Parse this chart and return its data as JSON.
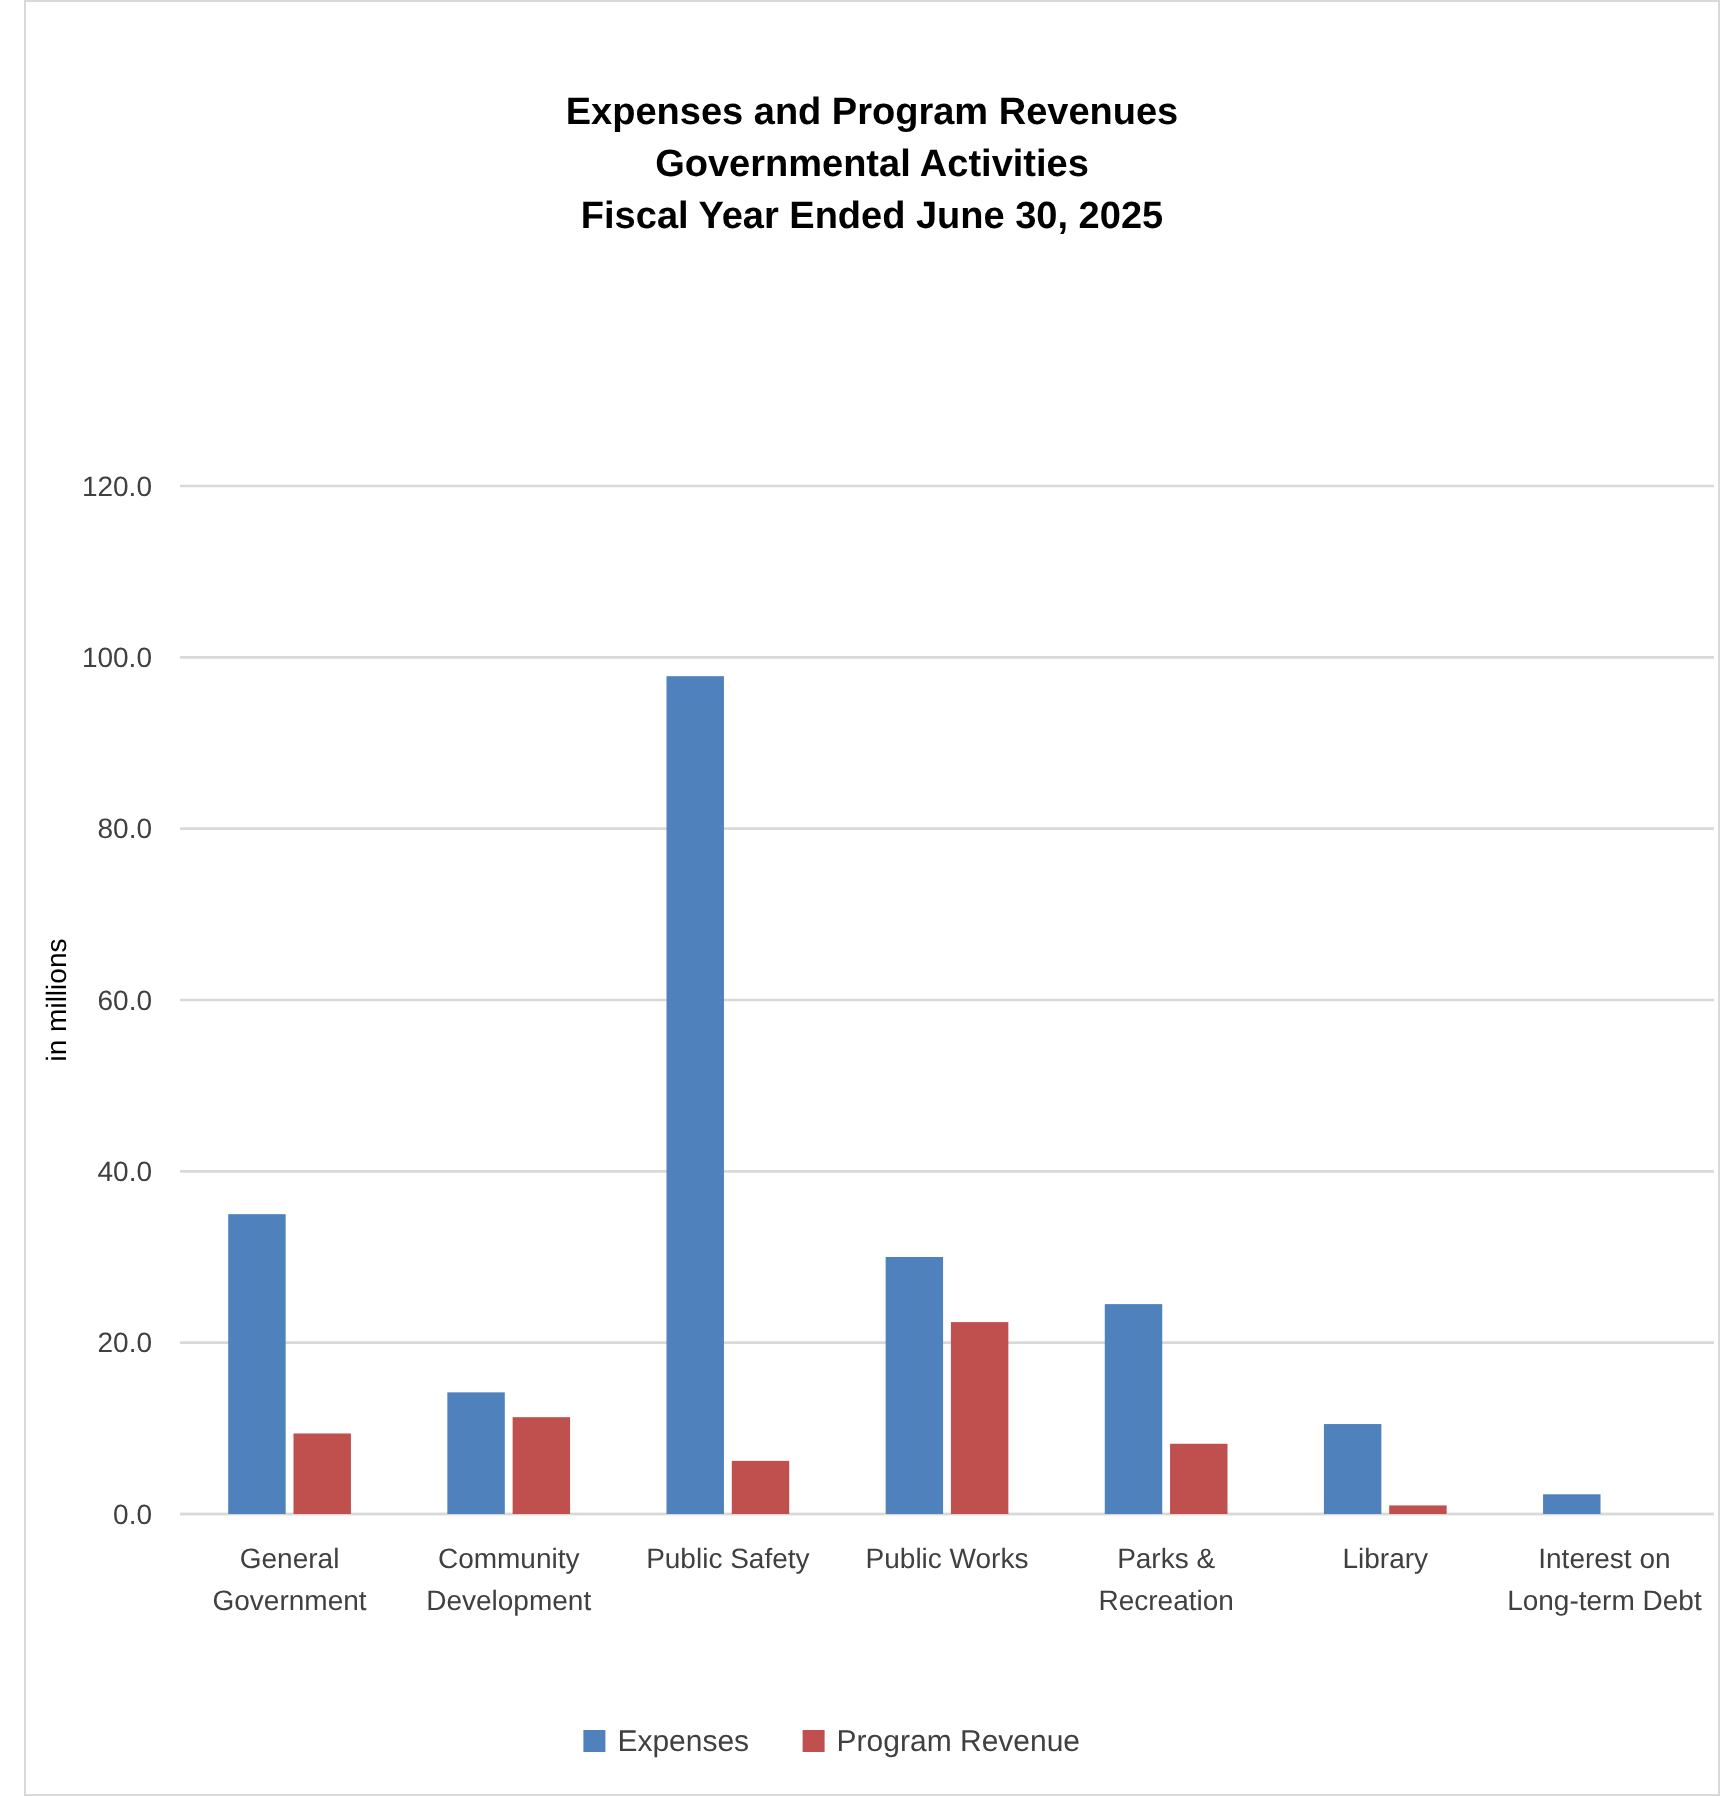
{
  "chart_data": {
    "type": "bar",
    "title": "Expenses and Program Revenues\nGovernmental Activities\nFiscal Year Ended June 30, 2025",
    "ylabel": "in millions",
    "categories": [
      "General\nGovernment",
      "Community\nDevelopment",
      "Public Safety",
      "Public Works",
      "Parks &\nRecreation",
      "Library",
      "Interest on\nLong-term Debt"
    ],
    "series": [
      {
        "name": "Expenses",
        "color": "#4f81bd",
        "values": [
          35.0,
          14.2,
          97.8,
          30.0,
          24.5,
          10.5,
          2.3
        ]
      },
      {
        "name": "Program Revenue",
        "color": "#c0504d",
        "values": [
          9.4,
          11.3,
          6.2,
          22.4,
          8.2,
          1.0,
          0
        ]
      }
    ],
    "ylim": [
      0,
      120
    ],
    "yticks": [
      {
        "value": 0,
        "label": "0.0"
      },
      {
        "value": 20,
        "label": "20.0"
      },
      {
        "value": 40,
        "label": "40.0"
      },
      {
        "value": 60,
        "label": "60.0"
      },
      {
        "value": 80,
        "label": "80.0"
      },
      {
        "value": 100,
        "label": "100.0"
      },
      {
        "value": 120,
        "label": "120.0"
      }
    ],
    "grid": "y",
    "legend": "bottom"
  }
}
